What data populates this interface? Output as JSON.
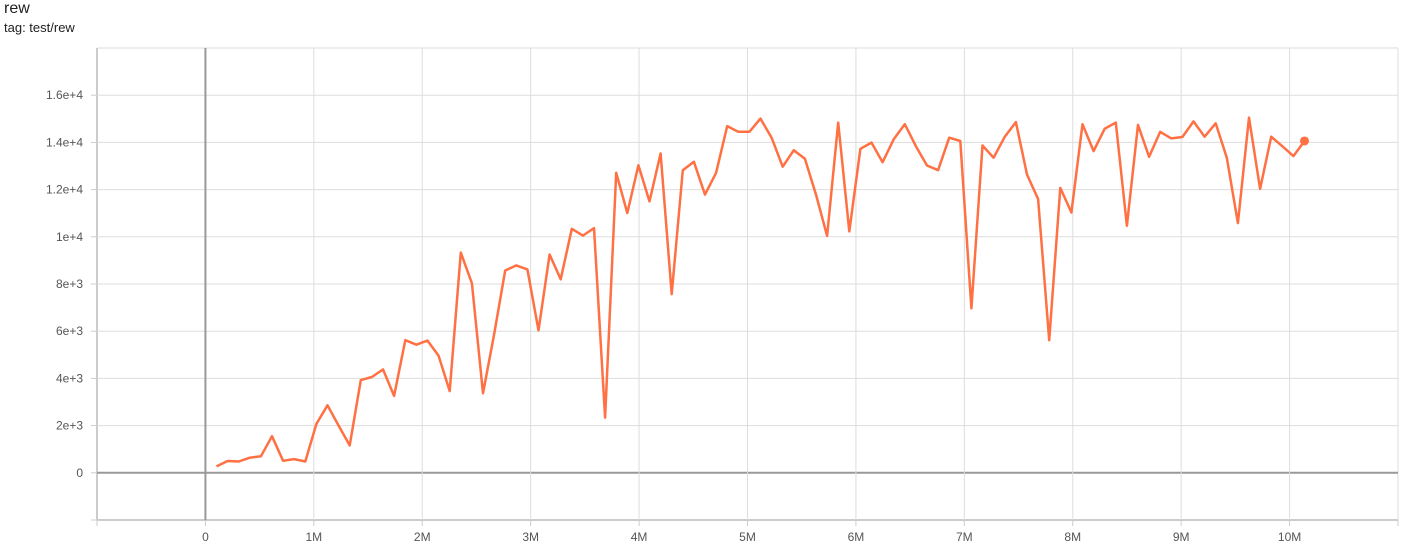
{
  "chart_data": {
    "type": "line",
    "title": "rew",
    "subtitle": "tag: test/rew",
    "xlabel": "",
    "ylabel": "",
    "xlim": [
      -1000000,
      11000000
    ],
    "ylim": [
      -2000,
      18000
    ],
    "grid": true,
    "x_ticks": [
      {
        "v": 0,
        "label": "0"
      },
      {
        "v": 1000000,
        "label": "1M"
      },
      {
        "v": 2000000,
        "label": "2M"
      },
      {
        "v": 3000000,
        "label": "3M"
      },
      {
        "v": 4000000,
        "label": "4M"
      },
      {
        "v": 5000000,
        "label": "5M"
      },
      {
        "v": 6000000,
        "label": "6M"
      },
      {
        "v": 7000000,
        "label": "7M"
      },
      {
        "v": 8000000,
        "label": "8M"
      },
      {
        "v": 9000000,
        "label": "9M"
      },
      {
        "v": 10000000,
        "label": "10M"
      }
    ],
    "y_ticks": [
      {
        "v": 0,
        "label": "0"
      },
      {
        "v": 2000,
        "label": "2e+3"
      },
      {
        "v": 4000,
        "label": "4e+3"
      },
      {
        "v": 6000,
        "label": "6e+3"
      },
      {
        "v": 8000,
        "label": "8e+3"
      },
      {
        "v": 10000,
        "label": "1e+4"
      },
      {
        "v": 12000,
        "label": "1.2e+4"
      },
      {
        "v": 14000,
        "label": "1.4e+4"
      },
      {
        "v": 16000,
        "label": "1.6e+4"
      }
    ],
    "series": [
      {
        "color": "#ff7043",
        "x": [
          102400,
          204800,
          307200,
          409600,
          512000,
          614400,
          716800,
          819200,
          921600,
          1024000,
          1126400,
          1228800,
          1331200,
          1433600,
          1536000,
          1638400,
          1740800,
          1843200,
          1945600,
          2048000,
          2150400,
          2252800,
          2355200,
          2457600,
          2560000,
          2662400,
          2764800,
          2867200,
          2969600,
          3072000,
          3174400,
          3276800,
          3379200,
          3481600,
          3584000,
          3686400,
          3788800,
          3891200,
          3993600,
          4096000,
          4198400,
          4300800,
          4403200,
          4505600,
          4608000,
          4710400,
          4812800,
          4915200,
          5017600,
          5120000,
          5222400,
          5324800,
          5427200,
          5529600,
          5632000,
          5734400,
          5836800,
          5939200,
          6041600,
          6144000,
          6246400,
          6348800,
          6451200,
          6553600,
          6656000,
          6758400,
          6860800,
          6963200,
          7065600,
          7168000,
          7270400,
          7372800,
          7475200,
          7577600,
          7680000,
          7782400,
          7884800,
          7987200,
          8089600,
          8192000,
          8294400,
          8396800,
          8499200,
          8601600,
          8704000,
          8806400,
          8908800,
          9011200,
          9113600,
          9216000,
          9318400,
          9420800,
          9523200,
          9625600,
          9728000,
          9830400,
          9932800,
          10035200,
          10137600
        ],
        "y": [
          270,
          500,
          480,
          640,
          700,
          1550,
          510,
          580,
          480,
          2070,
          2860,
          2000,
          1160,
          3930,
          4060,
          4380,
          3260,
          5620,
          5430,
          5600,
          4960,
          3460,
          9330,
          8030,
          3370,
          5860,
          8570,
          8790,
          8620,
          6040,
          9250,
          8200,
          10340,
          10050,
          10370,
          2340,
          12710,
          11010,
          13030,
          11500,
          13530,
          7570,
          12820,
          13180,
          11790,
          12710,
          14690,
          14450,
          14450,
          15010,
          14200,
          12970,
          13670,
          13310,
          11790,
          10040,
          14840,
          10230,
          13730,
          13990,
          13160,
          14130,
          14770,
          13840,
          13020,
          12820,
          14200,
          14060,
          6970,
          13870,
          13350,
          14240,
          14860,
          12640,
          11600,
          5620,
          12070,
          11030,
          14770,
          13630,
          14580,
          14840,
          10470,
          14740,
          13390,
          14450,
          14170,
          14230,
          14890,
          14240,
          14810,
          13350,
          10580,
          15050,
          12030,
          14240,
          13840,
          13420,
          14060
        ]
      }
    ]
  }
}
